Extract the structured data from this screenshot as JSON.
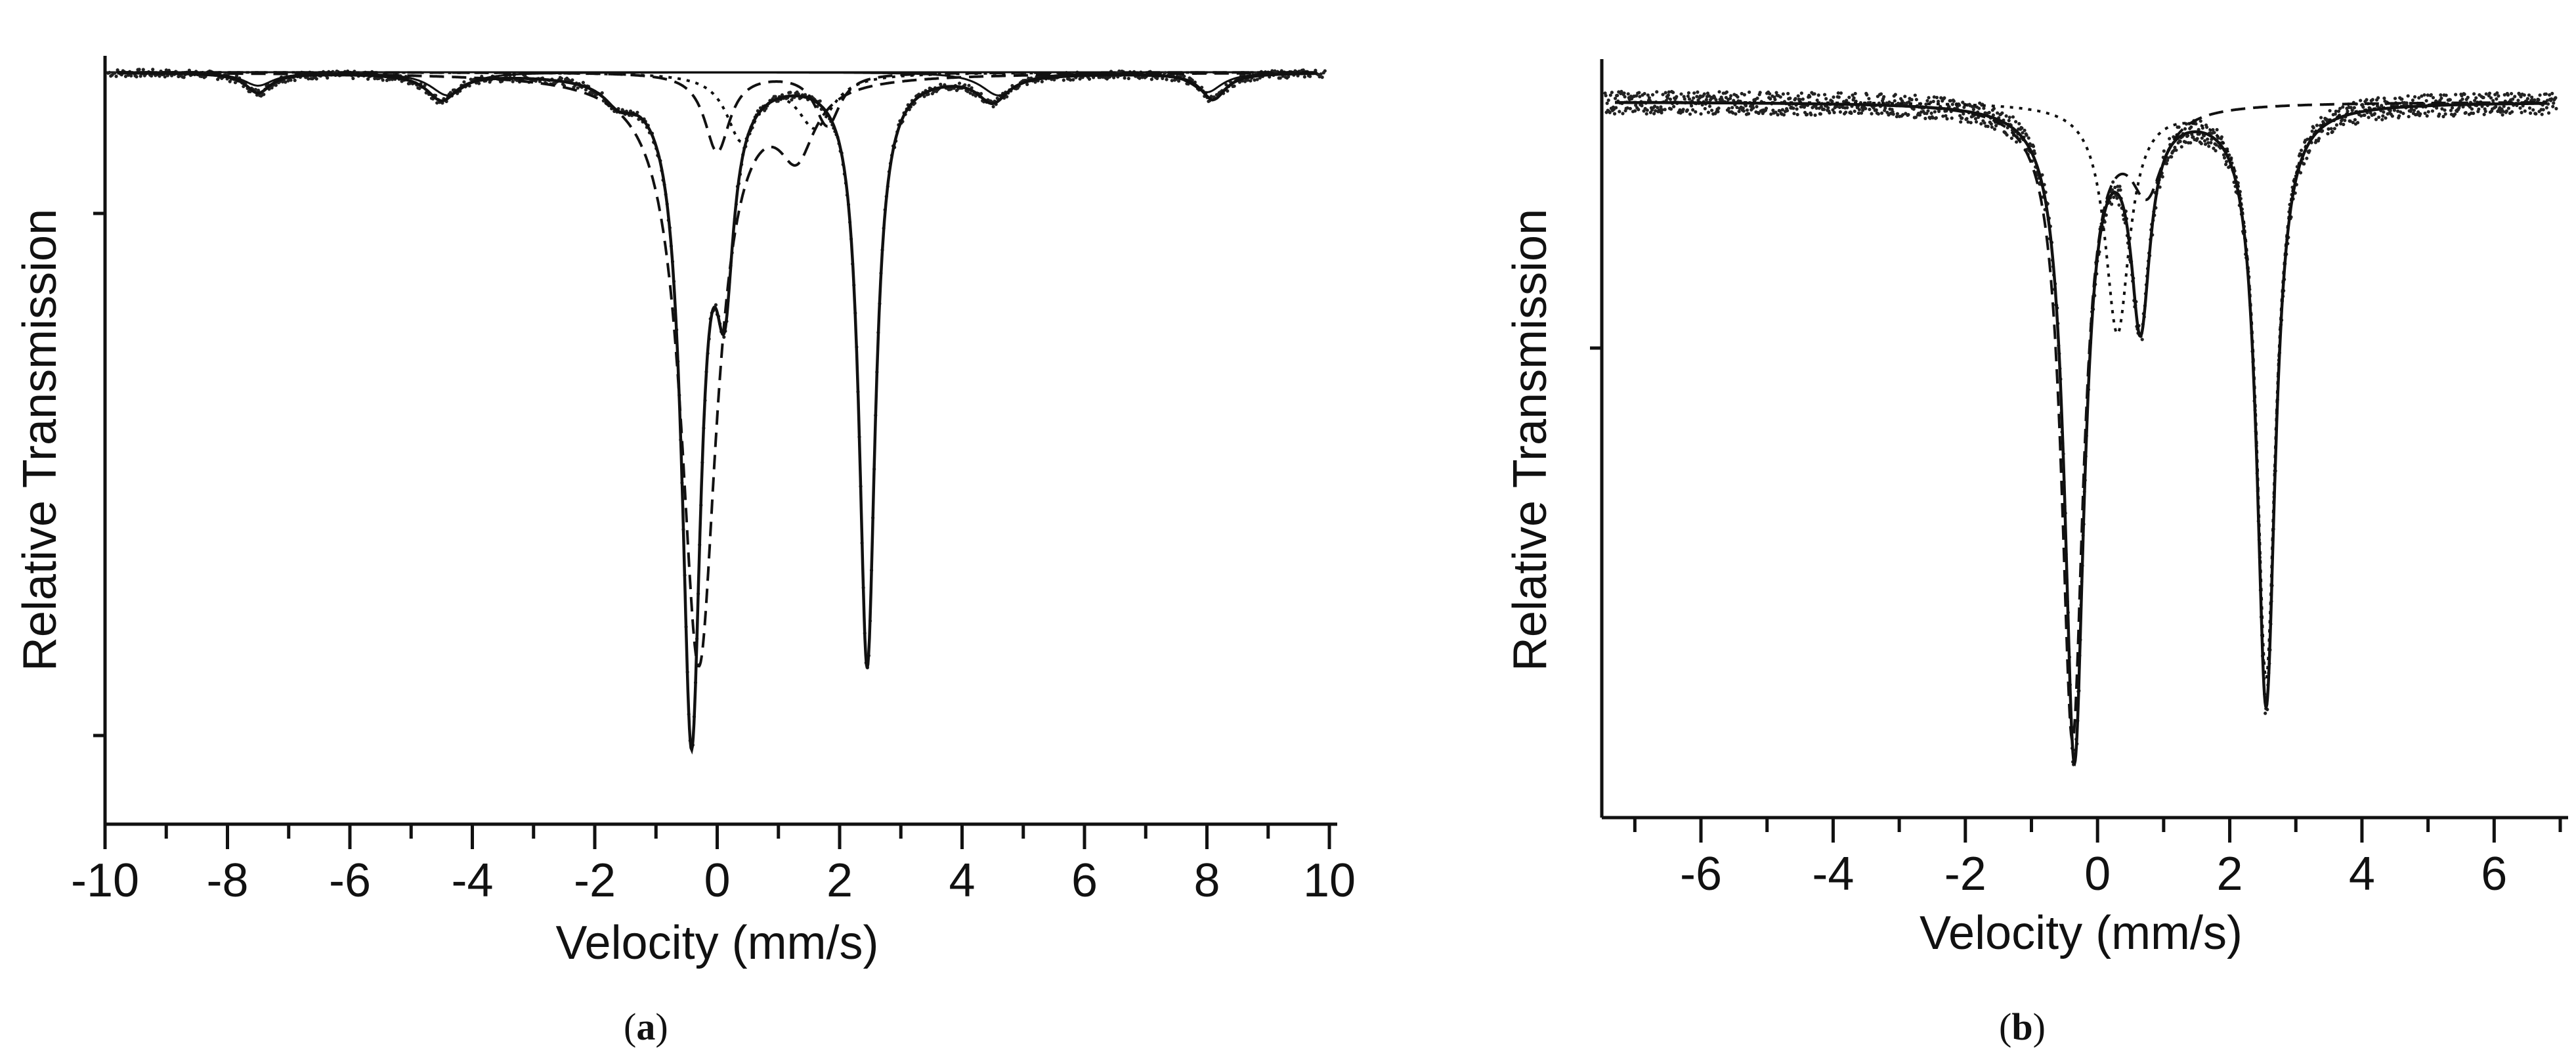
{
  "panels": [
    {
      "label": "a"
    },
    {
      "label": "b"
    }
  ],
  "chart_data": [
    {
      "type": "line",
      "title": "",
      "xlabel": "Velocity (mm/s)",
      "ylabel": "Relative Transmission",
      "xlim": [
        -10,
        10
      ],
      "xticks": [
        -10,
        -8,
        -6,
        -4,
        -2,
        0,
        2,
        4,
        6,
        8,
        10
      ],
      "x_minor_step": 1,
      "y_axis": {
        "tick_labels": "none",
        "major_ticks": 2,
        "baseline_level": 1.0,
        "min_level": 0.0
      },
      "grid": false,
      "legend": "none",
      "series": [
        {
          "style": "dotted-points",
          "components": [
            {
              "center": -0.42,
              "width": 0.38,
              "depth": 1.0
            },
            {
              "center": 2.45,
              "width": 0.32,
              "depth": 0.9
            },
            {
              "center": 0.12,
              "width": 0.35,
              "depth": 0.28
            },
            {
              "center": -7.5,
              "width": 0.5,
              "depth": 0.03
            },
            {
              "center": -4.5,
              "width": 0.6,
              "depth": 0.04
            },
            {
              "center": -1.6,
              "width": 0.6,
              "depth": 0.03
            },
            {
              "center": 4.5,
              "width": 0.6,
              "depth": 0.04
            },
            {
              "center": 8.1,
              "width": 0.5,
              "depth": 0.04
            }
          ]
        },
        {
          "style": "solid",
          "components": [
            {
              "center": -0.42,
              "width": 0.38,
              "depth": 1.0
            },
            {
              "center": 2.45,
              "width": 0.32,
              "depth": 0.9
            },
            {
              "center": 0.12,
              "width": 0.35,
              "depth": 0.28
            },
            {
              "center": -7.5,
              "width": 0.5,
              "depth": 0.03
            },
            {
              "center": -4.5,
              "width": 0.6,
              "depth": 0.04
            },
            {
              "center": -1.6,
              "width": 0.6,
              "depth": 0.03
            },
            {
              "center": 4.5,
              "width": 0.6,
              "depth": 0.04
            },
            {
              "center": 8.1,
              "width": 0.5,
              "depth": 0.04
            }
          ]
        },
        {
          "style": "dashed",
          "components": [
            {
              "center": -0.3,
              "width": 0.7,
              "depth": 0.9
            },
            {
              "center": 1.3,
              "width": 0.7,
              "depth": 0.1
            }
          ]
        },
        {
          "style": "dashed",
          "components": [
            {
              "center": 0.0,
              "width": 0.5,
              "depth": 0.12
            },
            {
              "center": 1.8,
              "width": 0.5,
              "depth": 0.08
            }
          ]
        },
        {
          "style": "dotted",
          "components": [
            {
              "center": 0.4,
              "width": 0.6,
              "depth": 0.1
            },
            {
              "center": 1.6,
              "width": 0.7,
              "depth": 0.08
            }
          ]
        },
        {
          "style": "solid-thin",
          "components": [
            {
              "center": -7.5,
              "width": 0.6,
              "depth": 0.02
            },
            {
              "center": -4.4,
              "width": 0.7,
              "depth": 0.035
            },
            {
              "center": 4.6,
              "width": 0.7,
              "depth": 0.035
            },
            {
              "center": 8.0,
              "width": 0.6,
              "depth": 0.03
            }
          ]
        }
      ]
    },
    {
      "type": "line",
      "title": "",
      "xlabel": "Velocity (mm/s)",
      "ylabel": "Relative Transmission",
      "xlim": [
        -7.5,
        7
      ],
      "xticks": [
        -6,
        -4,
        -2,
        0,
        2,
        4,
        6
      ],
      "x_minor_step": 1,
      "y_axis": {
        "tick_labels": "none",
        "major_ticks": 1,
        "baseline_level": 1.0,
        "min_level": 0.0
      },
      "grid": false,
      "legend": "none",
      "series": [
        {
          "style": "scatter-points",
          "components": [
            {
              "center": -0.35,
              "width": 0.36,
              "depth": 1.0
            },
            {
              "center": 2.55,
              "width": 0.34,
              "depth": 0.92
            },
            {
              "center": 0.65,
              "width": 0.35,
              "depth": 0.32
            }
          ]
        },
        {
          "style": "solid",
          "components": [
            {
              "center": -0.35,
              "width": 0.36,
              "depth": 1.0
            },
            {
              "center": 2.55,
              "width": 0.34,
              "depth": 0.92
            },
            {
              "center": 0.65,
              "width": 0.35,
              "depth": 0.32
            }
          ]
        },
        {
          "style": "dashed",
          "components": [
            {
              "center": -0.38,
              "width": 0.4,
              "depth": 0.97
            },
            {
              "center": 0.75,
              "width": 0.6,
              "depth": 0.12
            }
          ]
        },
        {
          "style": "dotted",
          "components": [
            {
              "center": 0.3,
              "width": 0.45,
              "depth": 0.35
            },
            {
              "center": 2.55,
              "width": 0.34,
              "depth": 0.88
            }
          ]
        }
      ]
    }
  ]
}
